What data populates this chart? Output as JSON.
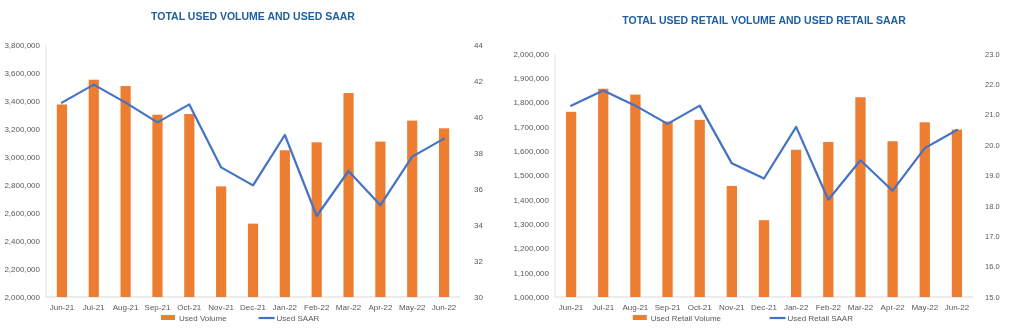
{
  "chart_data": [
    {
      "type": "bar",
      "title": "TOTAL USED VOLUME AND USED SAAR",
      "categories": [
        "Jun-21",
        "Jul-21",
        "Aug-21",
        "Sep-21",
        "Oct-21",
        "Nov-21",
        "Dec-21",
        "Jan-22",
        "Feb-22",
        "Mar-22",
        "Apr-22",
        "May-22",
        "Jun-22"
      ],
      "series": [
        {
          "name": "Used Volume",
          "color": "#ed7d31",
          "values": [
            3375000,
            3552000,
            3507000,
            3302000,
            3307000,
            2790000,
            2524000,
            3048000,
            3105000,
            3457000,
            3110000,
            3260000,
            3205000
          ]
        },
        {
          "name": "Used SAAR",
          "type": "line",
          "axis": "y2",
          "color": "#4472c4",
          "values": [
            40.8,
            41.8,
            40.8,
            39.7,
            40.7,
            37.2,
            36.2,
            39.0,
            34.5,
            37.0,
            35.1,
            37.8,
            38.8
          ]
        }
      ],
      "ylim": [
        2000000,
        3800000
      ],
      "yticks": [
        {
          "value": 2000000,
          "label": "2,000,000"
        },
        {
          "value": 2200000,
          "label": "2,200,000"
        },
        {
          "value": 2400000,
          "label": "2,400,000"
        },
        {
          "value": 2600000,
          "label": "2,600,000"
        },
        {
          "value": 2800000,
          "label": "2,800,000"
        },
        {
          "value": 3000000,
          "label": "3,000,000"
        },
        {
          "value": 3200000,
          "label": "3,200,000"
        },
        {
          "value": 3400000,
          "label": "3,400,000"
        },
        {
          "value": 3600000,
          "label": "3,600,000"
        },
        {
          "value": 3800000,
          "label": "3,800,000"
        }
      ],
      "y2lim": [
        30,
        44
      ],
      "y2ticks": [
        30,
        32,
        34,
        36,
        38,
        40,
        42,
        44
      ],
      "legend": "bottom"
    },
    {
      "type": "bar",
      "title": "TOTAL USED RETAIL VOLUME AND USED RETAIL SAAR",
      "categories": [
        "Jun-21",
        "Jul-21",
        "Aug-21",
        "Sep-21",
        "Oct-21",
        "Nov-21",
        "Dec-21",
        "Jan-22",
        "Feb-22",
        "Mar-22",
        "Apr-22",
        "May-22",
        "Jun-22"
      ],
      "series": [
        {
          "name": "Used Retail Volume",
          "color": "#ed7d31",
          "values": [
            1762000,
            1857000,
            1833000,
            1722000,
            1729000,
            1457000,
            1316000,
            1606000,
            1638000,
            1822000,
            1641000,
            1719000,
            1689000
          ]
        },
        {
          "name": "Used Retail SAAR",
          "type": "line",
          "axis": "y2",
          "color": "#4472c4",
          "values": [
            21.3,
            21.8,
            21.3,
            20.7,
            21.3,
            19.4,
            18.9,
            20.6,
            18.2,
            19.5,
            18.5,
            19.9,
            20.5
          ]
        }
      ],
      "ylim": [
        1000000,
        2000000
      ],
      "yticks": [
        {
          "value": 1000000,
          "label": "1,000,000"
        },
        {
          "value": 1100000,
          "label": "1,100,000"
        },
        {
          "value": 1200000,
          "label": "1,200,000"
        },
        {
          "value": 1300000,
          "label": "1,300,000"
        },
        {
          "value": 1400000,
          "label": "1,400,000"
        },
        {
          "value": 1500000,
          "label": "1,500,000"
        },
        {
          "value": 1600000,
          "label": "1,600,000"
        },
        {
          "value": 1700000,
          "label": "1,700,000"
        },
        {
          "value": 1800000,
          "label": "1,800,000"
        },
        {
          "value": 1900000,
          "label": "1,900,000"
        },
        {
          "value": 2000000,
          "label": "2,000,000"
        }
      ],
      "y2lim": [
        15,
        23
      ],
      "y2ticks": [
        {
          "value": 15,
          "label": "15.0"
        },
        {
          "value": 16,
          "label": "16.0"
        },
        {
          "value": 17,
          "label": "17.0"
        },
        {
          "value": 18,
          "label": "18.0"
        },
        {
          "value": 19,
          "label": "19.0"
        },
        {
          "value": 20,
          "label": "20.0"
        },
        {
          "value": 21,
          "label": "21.0"
        },
        {
          "value": 22,
          "label": "22.0"
        },
        {
          "value": 23,
          "label": "23.0"
        }
      ],
      "legend": "bottom"
    }
  ]
}
